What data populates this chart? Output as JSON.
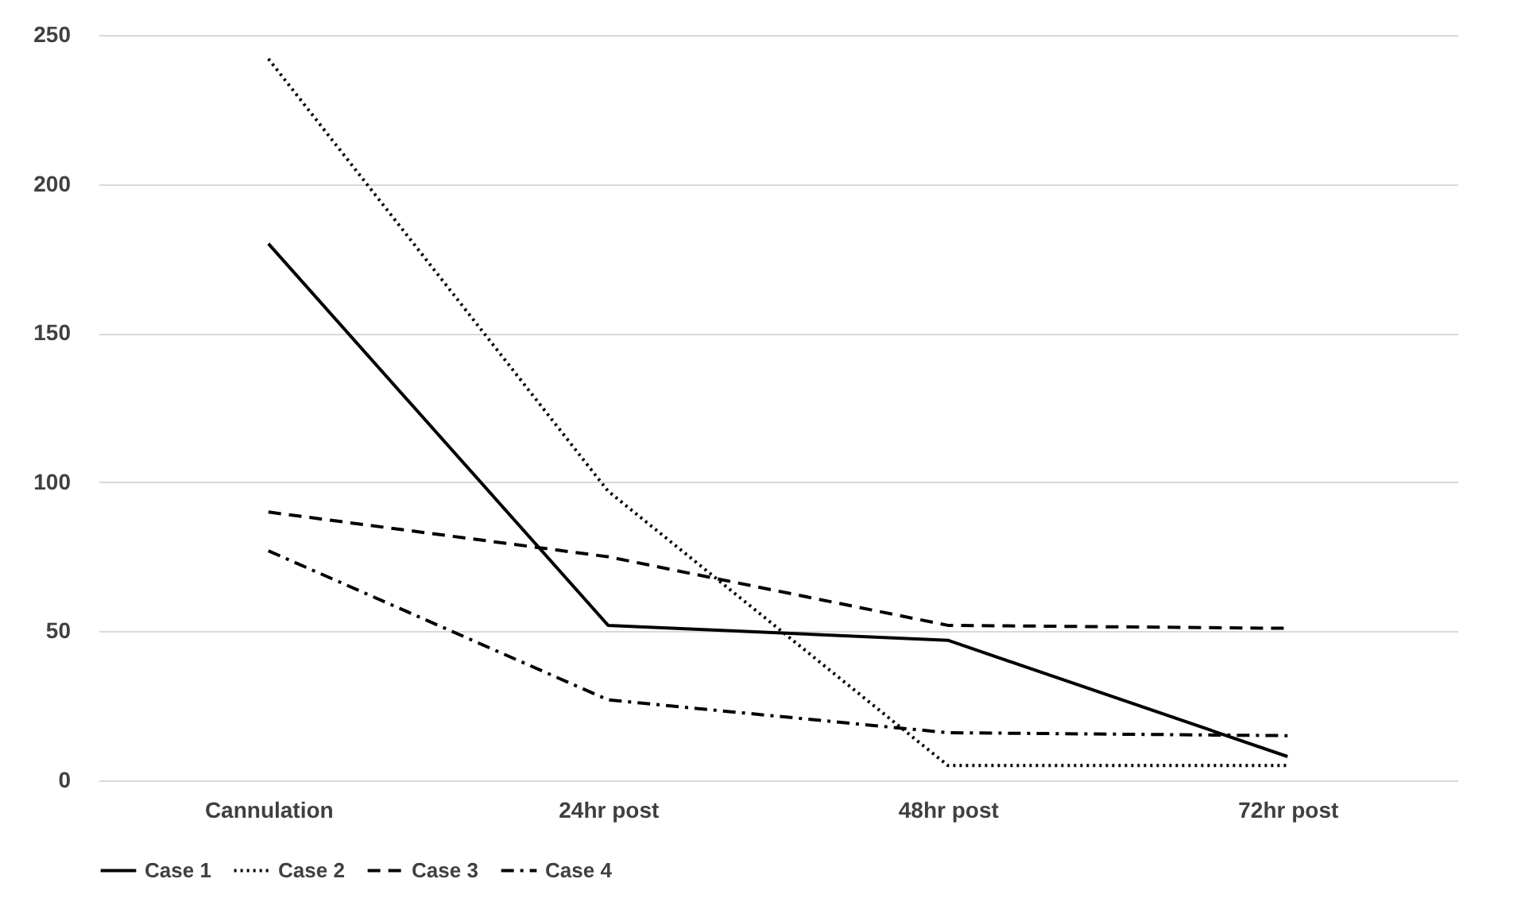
{
  "chart_data": {
    "type": "line",
    "categories": [
      "Cannulation",
      "24hr post",
      "48hr post",
      "72hr post"
    ],
    "series": [
      {
        "name": "Case 1",
        "color": "#000000",
        "line_style": "solid",
        "values": [
          180,
          52,
          47,
          8
        ]
      },
      {
        "name": "Case 2",
        "color": "#000000",
        "line_style": "dotted",
        "values": [
          242,
          97,
          5,
          5
        ]
      },
      {
        "name": "Case 3",
        "color": "#000000",
        "line_style": "dashed",
        "values": [
          90,
          75,
          52,
          51
        ]
      },
      {
        "name": "Case 4",
        "color": "#000000",
        "line_style": "dashdot",
        "values": [
          77,
          27,
          16,
          15
        ]
      }
    ],
    "ylim": [
      0,
      250
    ],
    "yticks": [
      0,
      50,
      100,
      150,
      200,
      250
    ],
    "grid": "y",
    "legend": "bottom"
  }
}
